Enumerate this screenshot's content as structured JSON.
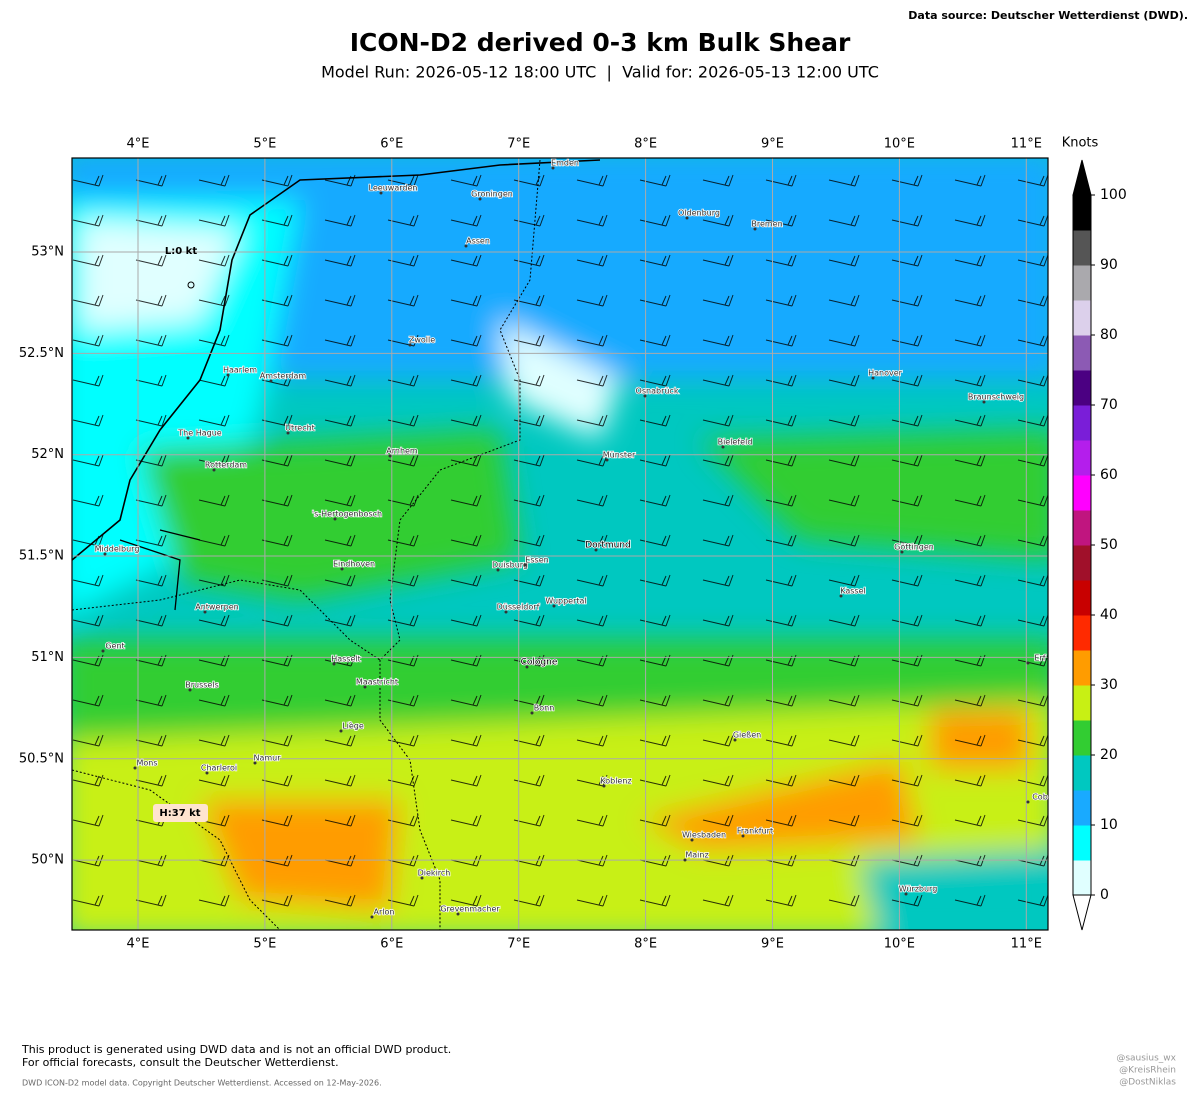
{
  "header": {
    "source": "Data source: Deutscher Wetterdienst (DWD).",
    "title": "ICON-D2 derived 0-3 km Bulk Shear",
    "subtitle": "Model Run: 2026-05-12 18:00 UTC  |  Valid for: 2026-05-13 12:00 UTC"
  },
  "map": {
    "lon_labels": [
      "4°E",
      "5°E",
      "6°E",
      "7°E",
      "8°E",
      "9°E",
      "10°E",
      "11°E"
    ],
    "lat_labels": [
      "53°N",
      "52.5°N",
      "52°N",
      "51.5°N",
      "51°N",
      "50.5°N",
      "50°N"
    ],
    "extremes": [
      "L:0 kt",
      "H:37 kt"
    ],
    "cities": [
      "Emden",
      "Leeuwarden",
      "Groningen",
      "Oldenburg",
      "Bremen",
      "Assen",
      "Zwolle",
      "Haarlem",
      "Amsterdam",
      "Osnabrück",
      "Hanover",
      "Braunschweig",
      "The Hague",
      "Utrecht",
      "Bielefeld",
      "Münster",
      "Rotterdam",
      "Arnhem",
      "'s-Hertogenbosch",
      "Göttingen",
      "Middelburg",
      "Eindhoven",
      "Duisburg",
      "Essen",
      "Dortmund",
      "Kassel",
      "Antwerpen",
      "Wuppertal",
      "Düsseldorf",
      "Gent",
      "Hasselt",
      "Cologne",
      "Erf",
      "Brussels",
      "Maastricht",
      "Bonn",
      "Liège",
      "Gießen",
      "Mons",
      "Charleroi",
      "Namur",
      "Koblenz",
      "Cob",
      "Wiesbaden",
      "Frankfurt",
      "Mainz",
      "Diekirch",
      "Würzburg",
      "Arlon",
      "Grevenmacher"
    ]
  },
  "colorbar": {
    "unit": "Knots",
    "ticks": [
      0,
      10,
      20,
      30,
      40,
      50,
      60,
      70,
      80,
      90,
      100
    ],
    "colors": [
      "#e0ffff",
      "#00ffff",
      "#19aaff",
      "#00c8c0",
      "#32cd32",
      "#c8f014",
      "#ff9c00",
      "#ff2a00",
      "#c80000",
      "#a0102a",
      "#c0157f",
      "#ff00ff",
      "#b41eec",
      "#7a1ed8",
      "#4b0082",
      "#8c5ab4",
      "#dcd0eb",
      "#aaa9ad",
      "#555555",
      "#000000"
    ]
  },
  "footer": {
    "disclaimer": [
      "This product is generated using DWD data and is not an official DWD product.",
      "For official forecasts, consult the Deutscher Wetterdienst."
    ],
    "copyright": "DWD ICON-D2 model data. Copyright Deutscher Wetterdienst. Accessed on 12-May-2026.",
    "credits": [
      "@sausius_wx",
      "@KreisRhein",
      "@DostNiklas"
    ]
  }
}
